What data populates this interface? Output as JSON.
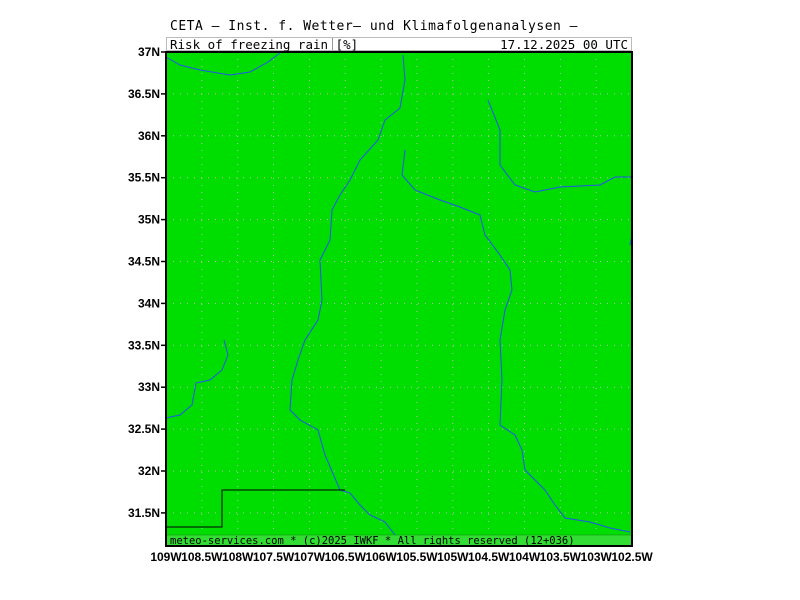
{
  "header": {
    "title": "CETA — Inst. f. Wetter— und Klimafolgenanalysen —",
    "parameter": "Risk_of_freezing_rain_[%]",
    "valid_time": "17.12.2025 00 UTC"
  },
  "footer": {
    "credit": "meteo-services.com * (c)2025 IWKF * All rights reserved (12+036)"
  },
  "map": {
    "field_color": "#00dd00",
    "river_color": "#2255ee",
    "border_color": "#000000",
    "lat_labels": [
      "37N",
      "36.5N",
      "36N",
      "35.5N",
      "35N",
      "34.5N",
      "34N",
      "33.5N",
      "33N",
      "32.5N",
      "32N",
      "31.5N"
    ],
    "lon_labels": [
      "109W",
      "108.5W",
      "108W",
      "107.5W",
      "107W",
      "106.5W",
      "106W",
      "105.5W",
      "105W",
      "104.5W",
      "104W",
      "103.5W",
      "103W",
      "102.5W"
    ]
  }
}
